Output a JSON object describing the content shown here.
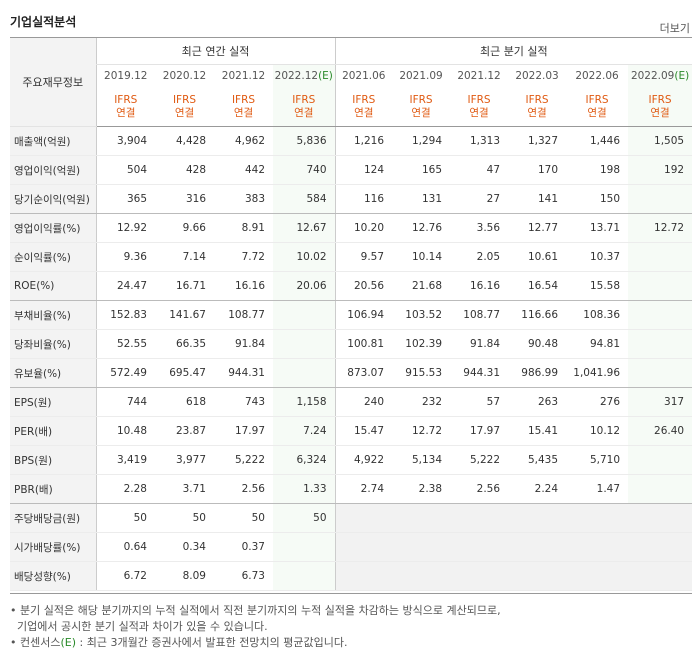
{
  "header": {
    "title": "기업실적분석",
    "more_label": "더보기"
  },
  "table": {
    "corner_label": "주요재무정보",
    "group_annual": "최근 연간 실적",
    "group_quarter": "최근 분기 실적",
    "annual_periods": [
      "2019.12",
      "2020.12",
      "2021.12",
      "2022.12"
    ],
    "quarter_periods": [
      "2021.06",
      "2021.09",
      "2021.12",
      "2022.03",
      "2022.06",
      "2022.09"
    ],
    "estimate_mark": "(E)",
    "ifrs_label": "IFRS",
    "basis_label": "연결",
    "rows": [
      {
        "label": "매출액(억원)",
        "annual": [
          "3,904",
          "4,428",
          "4,962",
          "5,836"
        ],
        "quarter": [
          "1,216",
          "1,294",
          "1,313",
          "1,327",
          "1,446",
          "1,505"
        ]
      },
      {
        "label": "영업이익(억원)",
        "annual": [
          "504",
          "428",
          "442",
          "740"
        ],
        "quarter": [
          "124",
          "165",
          "47",
          "170",
          "198",
          "192"
        ]
      },
      {
        "label": "당기순이익(억원)",
        "annual": [
          "365",
          "316",
          "383",
          "584"
        ],
        "quarter": [
          "116",
          "131",
          "27",
          "141",
          "150",
          ""
        ]
      },
      {
        "label": "영업이익률(%)",
        "annual": [
          "12.92",
          "9.66",
          "8.91",
          "12.67"
        ],
        "quarter": [
          "10.20",
          "12.76",
          "3.56",
          "12.77",
          "13.71",
          "12.72"
        ]
      },
      {
        "label": "순이익률(%)",
        "annual": [
          "9.36",
          "7.14",
          "7.72",
          "10.02"
        ],
        "quarter": [
          "9.57",
          "10.14",
          "2.05",
          "10.61",
          "10.37",
          ""
        ]
      },
      {
        "label": "ROE(%)",
        "annual": [
          "24.47",
          "16.71",
          "16.16",
          "20.06"
        ],
        "quarter": [
          "20.56",
          "21.68",
          "16.16",
          "16.54",
          "15.58",
          ""
        ]
      },
      {
        "label": "부채비율(%)",
        "annual": [
          "152.83",
          "141.67",
          "108.77",
          ""
        ],
        "quarter": [
          "106.94",
          "103.52",
          "108.77",
          "116.66",
          "108.36",
          ""
        ]
      },
      {
        "label": "당좌비율(%)",
        "annual": [
          "52.55",
          "66.35",
          "91.84",
          ""
        ],
        "quarter": [
          "100.81",
          "102.39",
          "91.84",
          "90.48",
          "94.81",
          ""
        ]
      },
      {
        "label": "유보율(%)",
        "annual": [
          "572.49",
          "695.47",
          "944.31",
          ""
        ],
        "quarter": [
          "873.07",
          "915.53",
          "944.31",
          "986.99",
          "1,041.96",
          ""
        ]
      },
      {
        "label": "EPS(원)",
        "annual": [
          "744",
          "618",
          "743",
          "1,158"
        ],
        "quarter": [
          "240",
          "232",
          "57",
          "263",
          "276",
          "317"
        ]
      },
      {
        "label": "PER(배)",
        "annual": [
          "10.48",
          "23.87",
          "17.97",
          "7.24"
        ],
        "quarter": [
          "15.47",
          "12.72",
          "17.97",
          "15.41",
          "10.12",
          "26.40"
        ]
      },
      {
        "label": "BPS(원)",
        "annual": [
          "3,419",
          "3,977",
          "5,222",
          "6,324"
        ],
        "quarter": [
          "4,922",
          "5,134",
          "5,222",
          "5,435",
          "5,710",
          ""
        ]
      },
      {
        "label": "PBR(배)",
        "annual": [
          "2.28",
          "3.71",
          "2.56",
          "1.33"
        ],
        "quarter": [
          "2.74",
          "2.38",
          "2.56",
          "2.24",
          "1.47",
          ""
        ]
      },
      {
        "label": "주당배당금(원)",
        "annual": [
          "50",
          "50",
          "50",
          "50"
        ],
        "quarter": [
          "",
          "",
          "",
          "",
          "",
          ""
        ]
      },
      {
        "label": "시가배당률(%)",
        "annual": [
          "0.64",
          "0.34",
          "0.37",
          ""
        ],
        "quarter": [
          "",
          "",
          "",
          "",
          "",
          ""
        ]
      },
      {
        "label": "배당성향(%)",
        "annual": [
          "6.72",
          "8.09",
          "6.73",
          ""
        ],
        "quarter": [
          "",
          "",
          "",
          "",
          "",
          ""
        ]
      }
    ]
  },
  "notes": {
    "line1": "분기 실적은 해당 분기까지의 누적 실적에서 직전 분기까지의 누적 실적을 차감하는 방식으로 계산되므로,",
    "line2": "기업에서 공시한 분기 실적과 차이가 있을 수 있습니다.",
    "line3_prefix": "컨센서스",
    "line3_mark": "(E)",
    "line3_rest": " : 최근 3개월간 증권사에서 발표한 전망치의 평균값입니다."
  }
}
